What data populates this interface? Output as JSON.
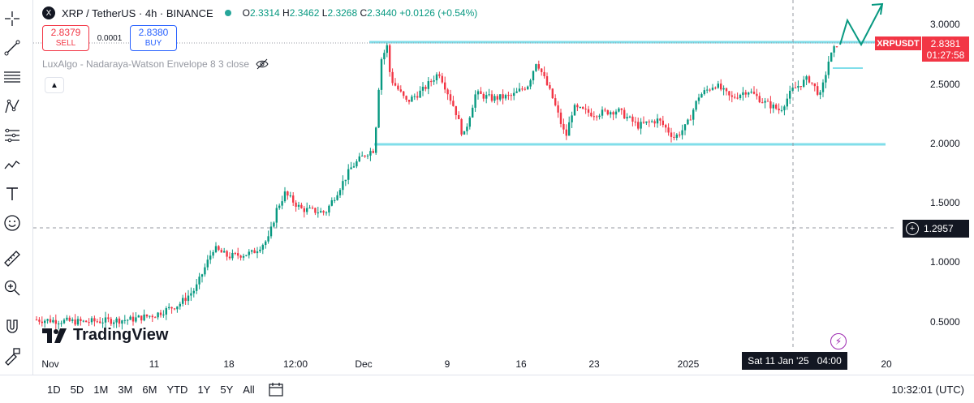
{
  "header": {
    "symbol_icon": "X",
    "title": "XRP / TetherUS · 4h · BINANCE",
    "ohlc": {
      "o_label": "O",
      "o": "2.3314",
      "h_label": "H",
      "h": "2.3462",
      "l_label": "L",
      "l": "2.3268",
      "c_label": "C",
      "c": "2.3440",
      "change": "+0.0126 (+0.54%)"
    }
  },
  "trade": {
    "sell_price": "2.8379",
    "sell_label": "SELL",
    "spread": "0.0001",
    "buy_price": "2.8380",
    "buy_label": "BUY"
  },
  "indicator": {
    "name": "LuxAlgo - Nadaraya-Watson Envelope 8 3 close",
    "visibility_icon": "eye-off-icon"
  },
  "watermark": "TradingView",
  "x_axis": {
    "labels": [
      "Nov",
      "11",
      "18",
      "12:00",
      "Dec",
      "9",
      "16",
      "23",
      "2025",
      "20"
    ],
    "active": {
      "date": "Sat 11 Jan '25",
      "time": "04:00"
    }
  },
  "price_axis": {
    "labels": [
      "3.0000",
      "2.5000",
      "2.0000",
      "1.5000",
      "1.0000",
      "0.5000"
    ],
    "symbol_badge": "XRPUSDT",
    "last_price": "2.8381",
    "countdown": "01:27:58",
    "crosshair_price": "1.2957"
  },
  "bottom": {
    "ranges": [
      "1D",
      "5D",
      "1M",
      "3M",
      "6M",
      "YTD",
      "1Y",
      "5Y",
      "All"
    ],
    "clock": "10:32:01 (UTC)"
  },
  "toolbar_icons": [
    "crosshair-icon",
    "trend-line-icon",
    "fib-icon",
    "pattern-icon",
    "projection-icon",
    "brush-icon",
    "text-icon",
    "emoji-icon",
    "ruler-icon",
    "zoom-icon",
    "magnet-icon",
    "lock-drawing-icon",
    "lock-icon"
  ],
  "colors": {
    "up": "#089981",
    "down": "#f23645",
    "level": "#80deea",
    "accent": "#2962ff"
  }
}
